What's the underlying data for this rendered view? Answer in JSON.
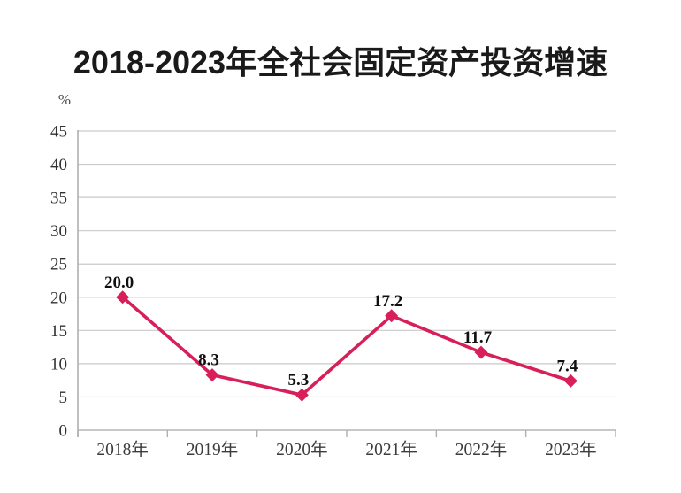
{
  "chart_data": {
    "type": "line",
    "title": "2018-2023年全社会固定资产投资增速",
    "unit_label": "%",
    "categories": [
      "2018年",
      "2019年",
      "2020年",
      "2021年",
      "2022年",
      "2023年"
    ],
    "values": [
      20.0,
      8.3,
      5.3,
      17.2,
      11.7,
      7.4
    ],
    "data_labels": [
      "20.0",
      "8.3",
      "5.3",
      "17.2",
      "11.7",
      "7.4"
    ],
    "ylim": [
      0,
      45
    ],
    "ytick_step": 5,
    "yticks": [
      0,
      5,
      10,
      15,
      20,
      25,
      30,
      35,
      40,
      45
    ],
    "grid": true,
    "legend": "none",
    "marker": "diamond",
    "colors": {
      "line": "#D81F5A",
      "marker": "#D81F5A",
      "gridline": "#C9C9C9",
      "axis": "#AFAFAF",
      "title_text": "#1A1A1A",
      "y_tick_text": "#303030",
      "x_tick_text": "#3C3C3C",
      "data_label_text": "#101010",
      "unit_text": "#4A4A4A",
      "background": "#FFFFFF"
    }
  }
}
